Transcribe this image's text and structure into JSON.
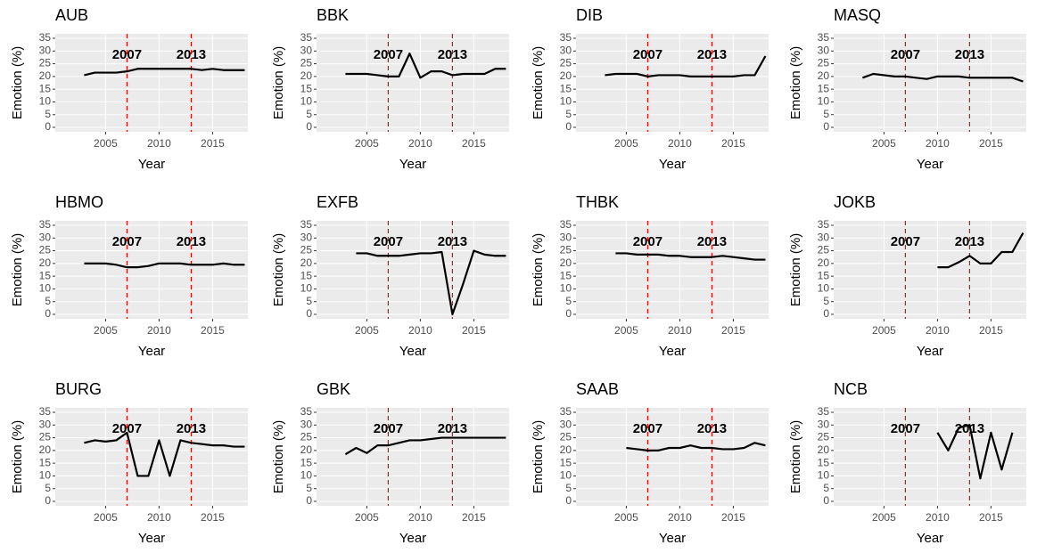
{
  "chart_data": [
    {
      "type": "line",
      "title": "AUB",
      "x_label": "Year",
      "y_label": "Emotion (%)",
      "xlim": [
        2000.3,
        2018.3
      ],
      "ylim": [
        -1.75,
        36.75
      ],
      "xticks": [
        2005,
        2010,
        2015
      ],
      "yticks": [
        0,
        5,
        10,
        15,
        20,
        25,
        30,
        35
      ],
      "vlines": [
        2007,
        2013
      ],
      "vline_color": "#ff0000",
      "grid": true,
      "x": [
        2003,
        2004,
        2005,
        2006,
        2007,
        2008,
        2009,
        2010,
        2011,
        2012,
        2013,
        2014,
        2015,
        2016,
        2017,
        2018
      ],
      "series": [
        {
          "color": "#000000",
          "values": [
            20.5,
            21.5,
            21.5,
            21.5,
            22,
            23,
            23,
            23,
            23,
            23,
            23,
            22.5,
            23,
            22.5,
            22.5,
            22.5
          ]
        }
      ]
    },
    {
      "type": "line",
      "title": "BBK",
      "x_label": "Year",
      "y_label": "Emotion (%)",
      "xlim": [
        2000.3,
        2018.3
      ],
      "ylim": [
        -1.75,
        36.75
      ],
      "xticks": [
        2005,
        2010,
        2015
      ],
      "yticks": [
        0,
        5,
        10,
        15,
        20,
        25,
        30,
        35
      ],
      "vlines": [
        2007,
        2013
      ],
      "vline_color": "#ff0000",
      "grid": true,
      "x": [
        2003,
        2004,
        2005,
        2006,
        2007,
        2008,
        2009,
        2010,
        2011,
        2012,
        2013,
        2014,
        2015,
        2016,
        2017,
        2018
      ],
      "series": [
        {
          "color": "#000000",
          "values": [
            21,
            21,
            21,
            20.5,
            20,
            20,
            29,
            19.5,
            22,
            22,
            20.5,
            21,
            21,
            21,
            23,
            23
          ]
        }
      ]
    },
    {
      "type": "line",
      "title": "DIB",
      "x_label": "Year",
      "y_label": "Emotion (%)",
      "xlim": [
        2000.3,
        2018.3
      ],
      "ylim": [
        -1.75,
        36.75
      ],
      "xticks": [
        2005,
        2010,
        2015
      ],
      "yticks": [
        0,
        5,
        10,
        15,
        20,
        25,
        30,
        35
      ],
      "vlines": [
        2007,
        2013
      ],
      "vline_color": "#ff0000",
      "grid": true,
      "x": [
        2003,
        2004,
        2005,
        2006,
        2007,
        2008,
        2009,
        2010,
        2011,
        2012,
        2013,
        2014,
        2015,
        2016,
        2017,
        2018
      ],
      "series": [
        {
          "color": "#000000",
          "values": [
            20.5,
            21,
            21,
            21,
            20,
            20.5,
            20.5,
            20.5,
            20,
            20,
            20,
            20,
            20,
            20.5,
            20.5,
            28
          ]
        }
      ]
    },
    {
      "type": "line",
      "title": "MASQ",
      "x_label": "Year",
      "y_label": "Emotion (%)",
      "xlim": [
        2000.3,
        2018.3
      ],
      "ylim": [
        -1.75,
        36.75
      ],
      "xticks": [
        2005,
        2010,
        2015
      ],
      "yticks": [
        0,
        5,
        10,
        15,
        20,
        25,
        30,
        35
      ],
      "vlines": [
        2007,
        2013
      ],
      "vline_color": "#ff0000",
      "grid": true,
      "x": [
        2003,
        2004,
        2005,
        2006,
        2007,
        2008,
        2009,
        2010,
        2011,
        2012,
        2013,
        2014,
        2015,
        2016,
        2017,
        2018
      ],
      "series": [
        {
          "color": "#000000",
          "values": [
            19.5,
            21,
            20.5,
            20,
            20,
            19.5,
            19,
            20,
            20,
            20,
            19.5,
            19.5,
            19.5,
            19.5,
            19.5,
            18
          ]
        }
      ]
    },
    {
      "type": "line",
      "title": "HBMO",
      "x_label": "Year",
      "y_label": "Emotion (%)",
      "xlim": [
        2000.3,
        2018.3
      ],
      "ylim": [
        -1.75,
        36.75
      ],
      "xticks": [
        2005,
        2010,
        2015
      ],
      "yticks": [
        0,
        5,
        10,
        15,
        20,
        25,
        30,
        35
      ],
      "vlines": [
        2007,
        2013
      ],
      "vline_color": "#ff0000",
      "grid": true,
      "x": [
        2003,
        2004,
        2005,
        2006,
        2007,
        2008,
        2009,
        2010,
        2011,
        2012,
        2013,
        2014,
        2015,
        2016,
        2017,
        2018
      ],
      "series": [
        {
          "color": "#000000",
          "values": [
            20,
            20,
            20,
            19.5,
            18.5,
            18.5,
            19,
            20,
            20,
            20,
            19.5,
            19.5,
            19.5,
            20,
            19.5,
            19.5
          ]
        }
      ]
    },
    {
      "type": "line",
      "title": "EXFB",
      "x_label": "Year",
      "y_label": "Emotion (%)",
      "xlim": [
        2000.3,
        2018.3
      ],
      "ylim": [
        -1.75,
        36.75
      ],
      "xticks": [
        2005,
        2010,
        2015
      ],
      "yticks": [
        0,
        5,
        10,
        15,
        20,
        25,
        30,
        35
      ],
      "vlines": [
        2007,
        2013
      ],
      "vline_color": "#ff0000",
      "grid": true,
      "x": [
        2004,
        2005,
        2006,
        2007,
        2008,
        2009,
        2010,
        2011,
        2012,
        2013,
        2014,
        2015,
        2016,
        2017,
        2018
      ],
      "series": [
        {
          "color": "#000000",
          "values": [
            24,
            24,
            23,
            23,
            23,
            23.5,
            24,
            24,
            24.5,
            0,
            12,
            25,
            23.5,
            23,
            23
          ]
        }
      ]
    },
    {
      "type": "line",
      "title": "THBK",
      "x_label": "Year",
      "y_label": "Emotion (%)",
      "xlim": [
        2000.3,
        2018.3
      ],
      "ylim": [
        -1.75,
        36.75
      ],
      "xticks": [
        2005,
        2010,
        2015
      ],
      "yticks": [
        0,
        5,
        10,
        15,
        20,
        25,
        30,
        35
      ],
      "vlines": [
        2007,
        2013
      ],
      "vline_color": "#ff0000",
      "grid": true,
      "x": [
        2004,
        2005,
        2006,
        2007,
        2008,
        2009,
        2010,
        2011,
        2012,
        2013,
        2014,
        2015,
        2016,
        2017,
        2018
      ],
      "series": [
        {
          "color": "#000000",
          "values": [
            24,
            24,
            23.5,
            23.5,
            23.5,
            23,
            23,
            22.5,
            22.5,
            22.5,
            23,
            22.5,
            22,
            21.5,
            21.5
          ]
        }
      ]
    },
    {
      "type": "line",
      "title": "JOKB",
      "x_label": "Year",
      "y_label": "Emotion (%)",
      "xlim": [
        2000.3,
        2018.3
      ],
      "ylim": [
        -1.75,
        36.75
      ],
      "xticks": [
        2005,
        2010,
        2015
      ],
      "yticks": [
        0,
        5,
        10,
        15,
        20,
        25,
        30,
        35
      ],
      "vlines": [
        2007,
        2013
      ],
      "vline_color": "#ff0000",
      "grid": true,
      "x": [
        2010,
        2011,
        2012,
        2013,
        2014,
        2015,
        2016,
        2017,
        2018
      ],
      "series": [
        {
          "color": "#000000",
          "values": [
            18.5,
            18.5,
            20.5,
            23,
            20,
            20,
            24.5,
            24.5,
            32
          ]
        }
      ]
    },
    {
      "type": "line",
      "title": "BURG",
      "x_label": "Year",
      "y_label": "Emotion (%)",
      "xlim": [
        2000.3,
        2018.3
      ],
      "ylim": [
        -1.75,
        36.75
      ],
      "xticks": [
        2005,
        2010,
        2015
      ],
      "yticks": [
        0,
        5,
        10,
        15,
        20,
        25,
        30,
        35
      ],
      "vlines": [
        2007,
        2013
      ],
      "vline_color": "#ff0000",
      "grid": true,
      "x": [
        2003,
        2004,
        2005,
        2006,
        2007,
        2008,
        2009,
        2010,
        2011,
        2012,
        2013,
        2014,
        2015,
        2016,
        2017,
        2018
      ],
      "series": [
        {
          "color": "#000000",
          "values": [
            23,
            24,
            23.5,
            24,
            27,
            10,
            10,
            24,
            10,
            24,
            23,
            22.5,
            22,
            22,
            21.5,
            21.5
          ]
        }
      ]
    },
    {
      "type": "line",
      "title": "GBK",
      "x_label": "Year",
      "y_label": "Emotion (%)",
      "xlim": [
        2000.3,
        2018.3
      ],
      "ylim": [
        -1.75,
        36.75
      ],
      "xticks": [
        2005,
        2010,
        2015
      ],
      "yticks": [
        0,
        5,
        10,
        15,
        20,
        25,
        30,
        35
      ],
      "vlines": [
        2007,
        2013
      ],
      "vline_color": "#ff0000",
      "grid": true,
      "x": [
        2003,
        2004,
        2005,
        2006,
        2007,
        2008,
        2009,
        2010,
        2011,
        2012,
        2013,
        2014,
        2015,
        2016,
        2017,
        2018
      ],
      "series": [
        {
          "color": "#000000",
          "values": [
            18.5,
            21,
            19,
            22,
            22,
            23,
            24,
            24,
            24.5,
            25,
            25,
            25,
            25,
            25,
            25,
            25
          ]
        }
      ]
    },
    {
      "type": "line",
      "title": "SAAB",
      "x_label": "Year",
      "y_label": "Emotion (%)",
      "xlim": [
        2000.3,
        2018.3
      ],
      "ylim": [
        -1.75,
        36.75
      ],
      "xticks": [
        2005,
        2010,
        2015
      ],
      "yticks": [
        0,
        5,
        10,
        15,
        20,
        25,
        30,
        35
      ],
      "vlines": [
        2007,
        2013
      ],
      "vline_color": "#ff0000",
      "grid": true,
      "x": [
        2005,
        2006,
        2007,
        2008,
        2009,
        2010,
        2011,
        2012,
        2013,
        2014,
        2015,
        2016,
        2017,
        2018
      ],
      "series": [
        {
          "color": "#000000",
          "values": [
            21,
            20.5,
            20,
            20,
            21,
            21,
            22,
            21,
            21,
            20.5,
            20.5,
            21,
            23,
            22
          ]
        }
      ]
    },
    {
      "type": "line",
      "title": "NCB",
      "x_label": "Year",
      "y_label": "Emotion (%)",
      "xlim": [
        2000.3,
        2018.3
      ],
      "ylim": [
        -1.75,
        36.75
      ],
      "xticks": [
        2005,
        2010,
        2015
      ],
      "yticks": [
        0,
        5,
        10,
        15,
        20,
        25,
        30,
        35
      ],
      "vlines": [
        2007,
        2013
      ],
      "vline_color": "#ff0000",
      "grid": true,
      "x": [
        2010,
        2011,
        2012,
        2013,
        2014,
        2015,
        2016,
        2017
      ],
      "series": [
        {
          "color": "#000000",
          "values": [
            27,
            20,
            29,
            30,
            9,
            27,
            12.5,
            27
          ]
        }
      ]
    }
  ]
}
